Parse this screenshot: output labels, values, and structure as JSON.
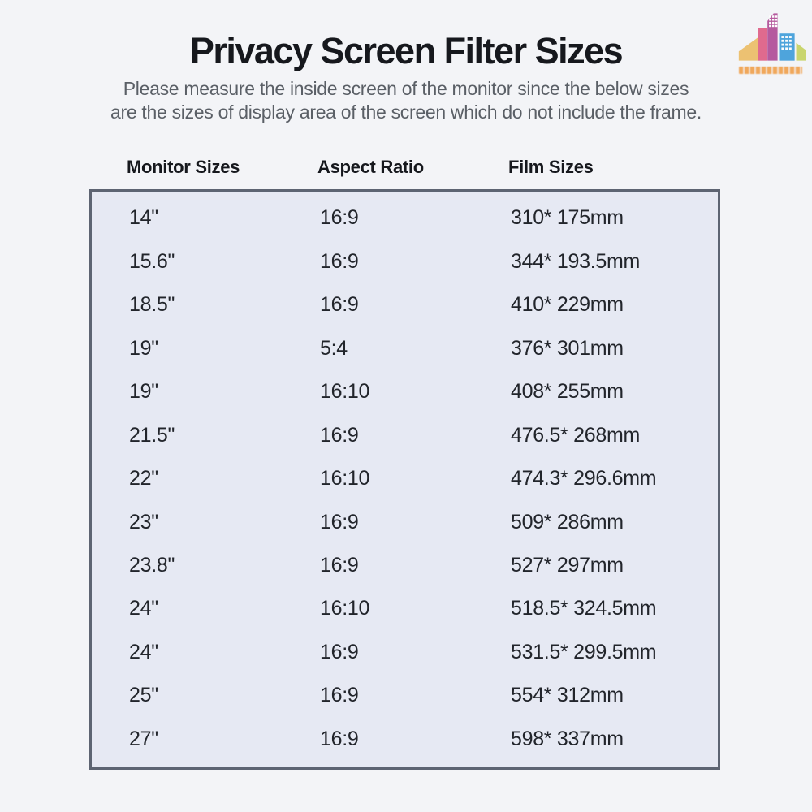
{
  "header": {
    "title": "Privacy Screen Filter Sizes",
    "subtitle_line1": "Please measure the inside screen of the monitor since the below sizes",
    "subtitle_line2": "are the sizes of display area of the screen which do not include the frame."
  },
  "table": {
    "columns": [
      "Monitor Sizes",
      "Aspect Ratio",
      "Film Sizes"
    ],
    "rows": [
      [
        "14\"",
        "16:9",
        "310* 175mm"
      ],
      [
        "15.6\"",
        "16:9",
        "344* 193.5mm"
      ],
      [
        "18.5\"",
        "16:9",
        "410* 229mm"
      ],
      [
        "19\"",
        "5:4",
        "376* 301mm"
      ],
      [
        "19\"",
        "16:10",
        "408* 255mm"
      ],
      [
        "21.5\"",
        "16:9",
        "476.5* 268mm"
      ],
      [
        "22\"",
        "16:10",
        "474.3* 296.6mm"
      ],
      [
        "23\"",
        "16:9",
        "509* 286mm"
      ],
      [
        "23.8\"",
        "16:9",
        "527* 297mm"
      ],
      [
        "24\"",
        "16:10",
        "518.5* 324.5mm"
      ],
      [
        "24\"",
        "16:9",
        "531.5* 299.5mm"
      ],
      [
        "25\"",
        "16:9",
        "554* 312mm"
      ],
      [
        "27\"",
        "16:9",
        "598* 337mm"
      ]
    ]
  },
  "logo": {
    "icon": "city-buildings",
    "building_colors": [
      "#ecc172",
      "#e06a8e",
      "#b55a9e",
      "#4ea4dc",
      "#c9d56e"
    ],
    "window_color": "#fdfdfd"
  },
  "colors": {
    "page_background": "#f3f4f7",
    "table_background": "#e6e9f3",
    "table_border": "#5d6472",
    "title_text": "#16181d",
    "subtitle_text": "#5a5f66",
    "cell_text": "#22252b",
    "wordmark_color": "#f0a85c"
  }
}
